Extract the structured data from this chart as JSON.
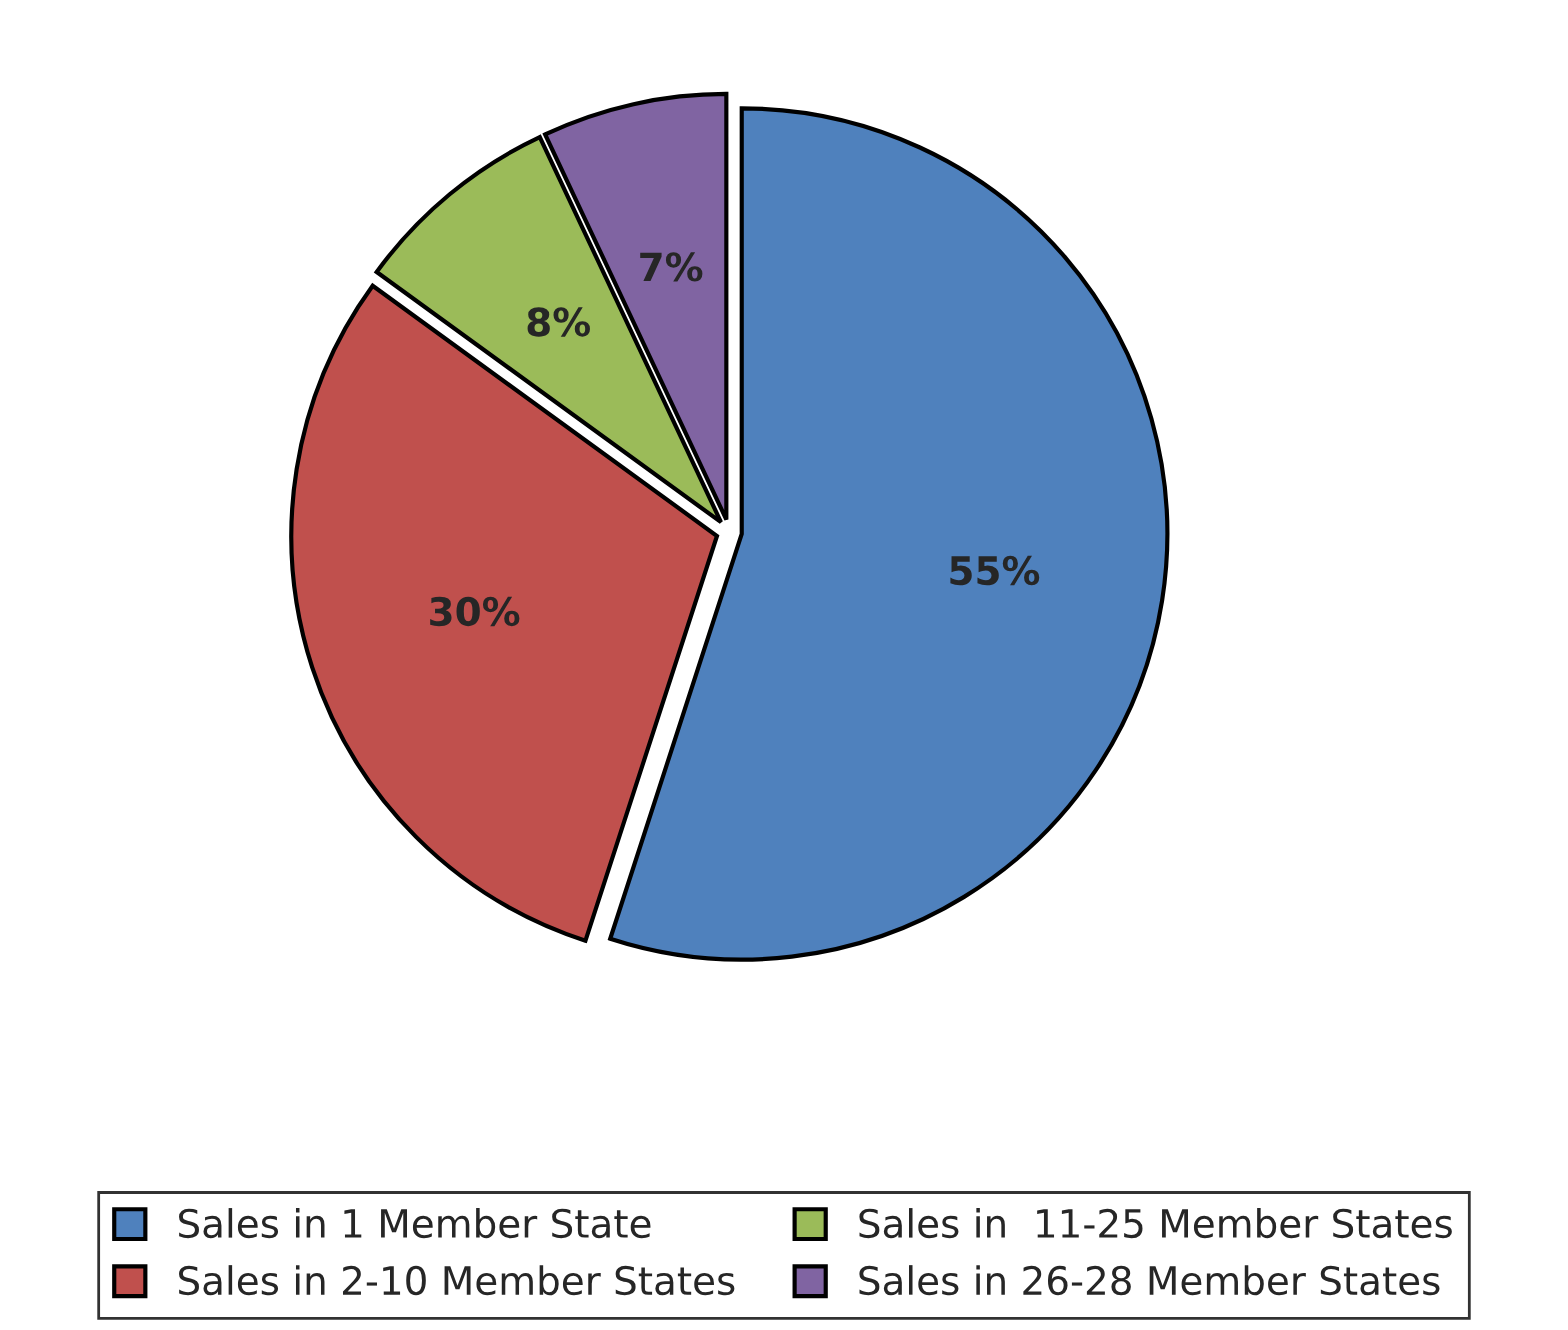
{
  "chart_data": {
    "type": "pie",
    "categories": [
      "Sales in 1 Member State",
      "Sales in 2-10 Member States",
      "Sales in  11-25 Member States",
      "Sales in 26-28 Member States"
    ],
    "values": [
      55,
      30,
      8,
      7
    ],
    "value_labels": [
      "55%",
      "30%",
      "8%",
      "7%"
    ],
    "colors": [
      "#4f81bd",
      "#c0504d",
      "#9bbb59",
      "#8064a2"
    ],
    "legend": "bottom"
  }
}
